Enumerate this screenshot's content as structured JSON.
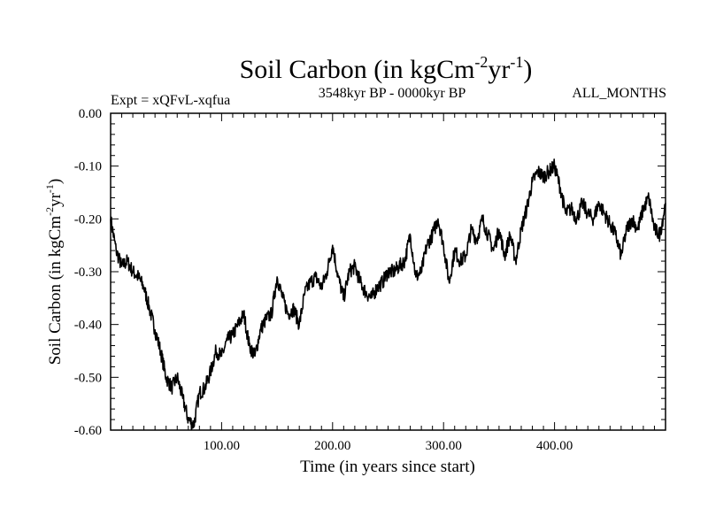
{
  "chart_data": {
    "type": "line",
    "title_main": "Soil Carbon (in kgCm",
    "title_sup1": "-2",
    "title_mid": "yr",
    "title_sup2": "-1",
    "title_end": ")",
    "subtitle_left": "Expt = xQFvL-xqfua",
    "subtitle_center": "3548kyr BP - 0000kyr BP",
    "subtitle_right": "ALL_MONTHS",
    "xlabel": "Time (in years since start)",
    "ylabel_main": "Soil Carbon (in kgCm",
    "ylabel_sup1": "-2",
    "ylabel_mid": "yr",
    "ylabel_sup2": "-1",
    "ylabel_end": ")",
    "xlim": [
      0,
      500
    ],
    "ylim": [
      -0.6,
      0.0
    ],
    "x_ticks": [
      {
        "value": 100,
        "label": "100.00"
      },
      {
        "value": 200,
        "label": "200.00"
      },
      {
        "value": 300,
        "label": "300.00"
      },
      {
        "value": 400,
        "label": "400.00"
      }
    ],
    "y_ticks": [
      {
        "value": 0.0,
        "label": "0.00"
      },
      {
        "value": -0.1,
        "label": "-0.10"
      },
      {
        "value": -0.2,
        "label": "-0.20"
      },
      {
        "value": -0.3,
        "label": "-0.30"
      },
      {
        "value": -0.4,
        "label": "-0.40"
      },
      {
        "value": -0.5,
        "label": "-0.50"
      },
      {
        "value": -0.6,
        "label": "-0.60"
      }
    ],
    "series": [
      {
        "name": "Soil Carbon",
        "color": "#000000",
        "x": [
          0,
          5,
          10,
          15,
          20,
          25,
          30,
          35,
          40,
          45,
          50,
          55,
          60,
          65,
          70,
          75,
          80,
          85,
          90,
          95,
          100,
          105,
          110,
          115,
          120,
          125,
          130,
          135,
          140,
          145,
          150,
          155,
          160,
          165,
          170,
          175,
          180,
          185,
          190,
          195,
          200,
          205,
          210,
          215,
          220,
          225,
          230,
          235,
          240,
          245,
          250,
          255,
          260,
          265,
          270,
          275,
          280,
          285,
          290,
          295,
          300,
          305,
          310,
          315,
          320,
          325,
          330,
          335,
          340,
          345,
          350,
          355,
          360,
          365,
          370,
          375,
          380,
          385,
          390,
          395,
          400,
          405,
          410,
          415,
          420,
          425,
          430,
          435,
          440,
          445,
          450,
          455,
          460,
          465,
          470,
          475,
          480,
          485,
          490,
          495,
          500
        ],
        "y": [
          -0.2,
          -0.26,
          -0.29,
          -0.28,
          -0.3,
          -0.31,
          -0.33,
          -0.37,
          -0.41,
          -0.45,
          -0.5,
          -0.52,
          -0.5,
          -0.54,
          -0.58,
          -0.59,
          -0.53,
          -0.52,
          -0.49,
          -0.45,
          -0.46,
          -0.43,
          -0.42,
          -0.4,
          -0.38,
          -0.44,
          -0.46,
          -0.41,
          -0.39,
          -0.38,
          -0.31,
          -0.35,
          -0.38,
          -0.37,
          -0.4,
          -0.34,
          -0.32,
          -0.31,
          -0.33,
          -0.3,
          -0.25,
          -0.31,
          -0.35,
          -0.3,
          -0.29,
          -0.32,
          -0.34,
          -0.35,
          -0.33,
          -0.32,
          -0.3,
          -0.3,
          -0.29,
          -0.28,
          -0.23,
          -0.31,
          -0.3,
          -0.25,
          -0.23,
          -0.2,
          -0.25,
          -0.32,
          -0.26,
          -0.28,
          -0.27,
          -0.22,
          -0.24,
          -0.2,
          -0.23,
          -0.26,
          -0.22,
          -0.27,
          -0.23,
          -0.28,
          -0.22,
          -0.18,
          -0.13,
          -0.11,
          -0.12,
          -0.11,
          -0.1,
          -0.14,
          -0.19,
          -0.18,
          -0.2,
          -0.17,
          -0.19,
          -0.2,
          -0.17,
          -0.19,
          -0.21,
          -0.23,
          -0.27,
          -0.22,
          -0.2,
          -0.22,
          -0.18,
          -0.16,
          -0.22,
          -0.23,
          -0.17
        ]
      }
    ]
  }
}
